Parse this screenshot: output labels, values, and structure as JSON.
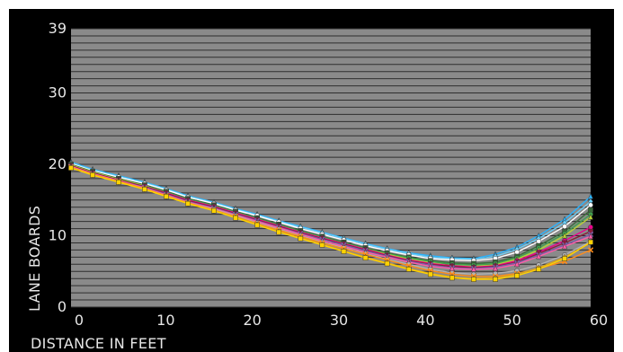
{
  "chart_data": {
    "type": "line",
    "title": "",
    "xlabel": "DISTANCE IN FEET",
    "ylabel": "LANE BOARDS",
    "xlim": [
      0,
      60
    ],
    "ylim": [
      0,
      39
    ],
    "xticks": [
      0,
      10,
      20,
      30,
      40,
      50,
      60
    ],
    "yticks": [
      0,
      10,
      20,
      30,
      39
    ],
    "grid": true,
    "x": [
      0,
      2.5,
      5.5,
      8.5,
      11,
      13.5,
      16.5,
      19,
      21.5,
      24,
      26.5,
      29,
      31.5,
      34,
      36.5,
      39,
      41.5,
      44,
      46.5,
      49,
      51.5,
      54,
      57,
      60
    ],
    "series": [
      {
        "color": "#2ab3ff",
        "marker": "triangle",
        "values": [
          20.3,
          19.3,
          18.4,
          17.5,
          16.6,
          15.6,
          14.7,
          13.8,
          13.0,
          12.1,
          11.3,
          10.5,
          9.7,
          8.9,
          8.2,
          7.6,
          7.2,
          6.9,
          6.8,
          7.4,
          8.4,
          10.0,
          12.3,
          15.5
        ]
      },
      {
        "color": "#6ecff6",
        "marker": "diamond",
        "values": [
          20.2,
          19.2,
          18.3,
          17.4,
          16.5,
          15.5,
          14.6,
          13.7,
          12.9,
          12.0,
          11.2,
          10.4,
          9.6,
          8.8,
          8.1,
          7.5,
          7.0,
          6.8,
          6.7,
          7.1,
          8.1,
          9.6,
          11.8,
          14.8
        ]
      },
      {
        "color": "#ffffff",
        "marker": "circle",
        "values": [
          20.1,
          19.1,
          18.2,
          17.3,
          16.4,
          15.4,
          14.5,
          13.6,
          12.8,
          11.9,
          11.0,
          10.2,
          9.4,
          8.6,
          7.9,
          7.3,
          6.8,
          6.6,
          6.5,
          6.8,
          7.7,
          9.2,
          11.3,
          14.3
        ]
      },
      {
        "color": "#3a6b3a",
        "marker": "square",
        "values": [
          20.0,
          19.0,
          18.0,
          17.1,
          16.2,
          15.2,
          14.3,
          13.4,
          12.5,
          11.6,
          10.7,
          9.9,
          9.1,
          8.3,
          7.6,
          7.0,
          6.5,
          6.2,
          6.1,
          6.3,
          7.1,
          8.6,
          10.6,
          13.6
        ]
      },
      {
        "color": "#3fa34d",
        "marker": "circle",
        "values": [
          19.9,
          18.9,
          17.9,
          17.0,
          16.1,
          15.1,
          14.2,
          13.3,
          12.4,
          11.5,
          10.6,
          9.8,
          9.0,
          8.2,
          7.5,
          6.9,
          6.4,
          6.0,
          5.9,
          6.1,
          6.9,
          8.3,
          10.3,
          13.0
        ]
      },
      {
        "color": "#b7d334",
        "marker": "triangle",
        "values": [
          19.9,
          18.9,
          17.9,
          17.0,
          16.0,
          15.0,
          14.1,
          13.2,
          12.3,
          11.4,
          10.5,
          9.7,
          8.9,
          8.1,
          7.4,
          6.7,
          6.2,
          5.8,
          5.7,
          5.9,
          6.7,
          8.0,
          10.0,
          12.6
        ]
      },
      {
        "color": "#ec008c",
        "marker": "circle",
        "values": [
          19.8,
          18.8,
          17.8,
          16.9,
          16.0,
          15.0,
          14.1,
          13.2,
          12.3,
          11.4,
          10.5,
          9.7,
          8.9,
          8.1,
          7.3,
          6.6,
          6.1,
          5.8,
          5.6,
          5.8,
          6.5,
          7.7,
          9.3,
          11.2
        ]
      },
      {
        "color": "#8b1c3a",
        "marker": "square",
        "values": [
          19.8,
          18.8,
          17.8,
          16.9,
          15.9,
          14.9,
          14.0,
          13.1,
          12.2,
          11.3,
          10.4,
          9.6,
          8.8,
          8.0,
          7.2,
          6.5,
          6.0,
          5.7,
          5.5,
          5.7,
          6.3,
          7.5,
          9.0,
          10.6
        ]
      },
      {
        "color": "#7b5ea7",
        "marker": "x",
        "values": [
          19.7,
          18.7,
          17.7,
          16.8,
          15.8,
          14.8,
          13.9,
          13.0,
          12.1,
          11.2,
          10.3,
          9.5,
          8.7,
          7.9,
          7.1,
          6.4,
          5.9,
          5.5,
          5.4,
          5.6,
          6.2,
          7.3,
          8.7,
          10.2
        ]
      },
      {
        "color": "#ff5ca8",
        "marker": "triangle",
        "values": [
          19.7,
          18.7,
          17.7,
          16.7,
          15.7,
          14.7,
          13.8,
          12.9,
          12.0,
          11.1,
          10.2,
          9.3,
          8.5,
          7.7,
          7.0,
          6.3,
          5.7,
          5.4,
          5.3,
          5.4,
          6.0,
          7.1,
          8.5,
          9.9
        ]
      },
      {
        "color": "#b3b3b3",
        "marker": "circle",
        "values": [
          19.6,
          18.6,
          17.6,
          16.6,
          15.6,
          14.6,
          13.7,
          12.8,
          11.8,
          10.9,
          10.0,
          9.1,
          8.3,
          7.5,
          6.7,
          6.0,
          5.3,
          4.8,
          4.6,
          4.7,
          5.1,
          5.9,
          7.3,
          9.2
        ]
      },
      {
        "color": "#ff8c1a",
        "marker": "x",
        "values": [
          19.6,
          18.6,
          17.6,
          16.6,
          15.6,
          14.6,
          13.6,
          12.7,
          11.7,
          10.8,
          9.9,
          9.0,
          8.2,
          7.4,
          6.6,
          5.8,
          5.1,
          4.6,
          4.3,
          4.3,
          4.7,
          5.4,
          6.4,
          8.0
        ]
      },
      {
        "color": "#d9a521",
        "marker": "diamond",
        "values": [
          19.5,
          18.5,
          17.5,
          16.5,
          15.5,
          14.5,
          13.5,
          12.6,
          11.6,
          10.6,
          9.7,
          8.8,
          7.9,
          7.0,
          6.2,
          5.4,
          4.7,
          4.2,
          4.0,
          4.1,
          4.6,
          5.5,
          7.0,
          9.0
        ]
      },
      {
        "color": "#ffd200",
        "marker": "square",
        "values": [
          19.5,
          18.5,
          17.5,
          16.5,
          15.5,
          14.5,
          13.5,
          12.5,
          11.5,
          10.5,
          9.6,
          8.7,
          7.8,
          6.9,
          6.1,
          5.3,
          4.6,
          4.1,
          3.9,
          3.9,
          4.4,
          5.3,
          6.8,
          9.1
        ]
      }
    ]
  }
}
